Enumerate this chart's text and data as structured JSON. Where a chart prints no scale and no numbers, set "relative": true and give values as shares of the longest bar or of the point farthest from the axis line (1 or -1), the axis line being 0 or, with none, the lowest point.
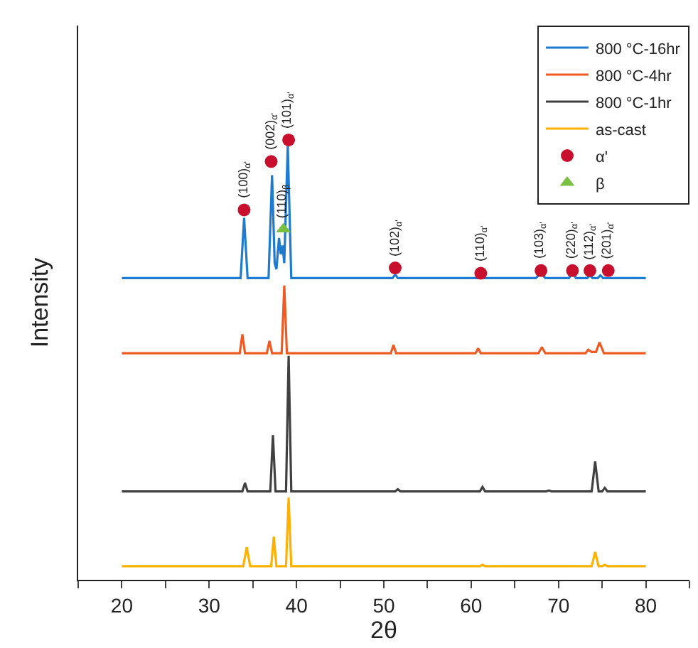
{
  "chart_data": {
    "type": "line",
    "xlabel": "2θ",
    "ylabel": "Intensity",
    "relative": true,
    "xlim": [
      15,
      85
    ],
    "xticks": [
      {
        "value": 15,
        "label": null
      },
      20,
      {
        "value": 25,
        "label": null
      },
      30,
      {
        "value": 35,
        "label": null
      },
      40,
      {
        "value": 45,
        "label": null
      },
      50,
      {
        "value": 55,
        "label": null
      },
      60,
      {
        "value": 65,
        "label": null
      },
      70,
      {
        "value": 75,
        "label": null
      },
      80,
      {
        "value": 85,
        "label": null
      }
    ],
    "legend": "top right",
    "series": [
      {
        "name": "800 °C-16hr",
        "color": "#1f7bcf",
        "marker": "none",
        "x": [
          20,
          33.6,
          34.0,
          34.4,
          36.8,
          37.2,
          37.5,
          37.7,
          38.0,
          38.2,
          38.4,
          38.6,
          39.0,
          39.4,
          51.0,
          51.3,
          51.6,
          60.8,
          61.1,
          61.4,
          67.4,
          68.0,
          68.5,
          71.2,
          71.6,
          72.0,
          73.3,
          73.6,
          73.9,
          74.5,
          74.8,
          75.1,
          80
        ],
        "values": [
          0.686,
          0.686,
          0.823,
          0.686,
          0.686,
          0.92,
          0.72,
          0.706,
          0.777,
          0.74,
          0.76,
          0.72,
          0.986,
          0.686,
          0.686,
          0.694,
          0.686,
          0.686,
          0.691,
          0.686,
          0.686,
          0.697,
          0.686,
          0.686,
          0.7,
          0.686,
          0.686,
          0.692,
          0.686,
          0.686,
          0.692,
          0.686,
          0.686
        ]
      },
      {
        "name": "800 °C-4hr",
        "color": "#f05a22",
        "marker": "none",
        "x": [
          20,
          33.5,
          33.8,
          34.1,
          36.6,
          36.9,
          37.2,
          38.3,
          38.6,
          38.9,
          50.8,
          51.1,
          51.4,
          60.5,
          60.8,
          61.1,
          67.7,
          68.1,
          68.5,
          73.1,
          73.4,
          73.8,
          74.3,
          74.7,
          75.2,
          80
        ],
        "values": [
          0.515,
          0.515,
          0.558,
          0.515,
          0.515,
          0.543,
          0.515,
          0.515,
          0.669,
          0.515,
          0.515,
          0.534,
          0.515,
          0.515,
          0.526,
          0.515,
          0.515,
          0.529,
          0.515,
          0.515,
          0.523,
          0.518,
          0.518,
          0.54,
          0.515,
          0.515
        ]
      },
      {
        "name": "800 °C-1hr",
        "color": "#404040",
        "marker": "none",
        "x": [
          20,
          33.8,
          34.1,
          34.4,
          37.0,
          37.3,
          37.6,
          38.8,
          39.1,
          39.4,
          51.3,
          51.6,
          51.9,
          61.0,
          61.3,
          61.6,
          68.6,
          68.9,
          69.2,
          73.8,
          74.2,
          74.6,
          75.0,
          75.3,
          75.6,
          80
        ],
        "values": [
          0.201,
          0.201,
          0.22,
          0.201,
          0.201,
          0.329,
          0.201,
          0.201,
          0.509,
          0.201,
          0.201,
          0.206,
          0.201,
          0.201,
          0.211,
          0.201,
          0.201,
          0.203,
          0.201,
          0.201,
          0.269,
          0.201,
          0.201,
          0.209,
          0.201,
          0.201
        ]
      },
      {
        "name": "as-cast",
        "color": "#ffb000",
        "marker": "none",
        "x": [
          20,
          33.9,
          34.3,
          34.7,
          37.1,
          37.4,
          37.7,
          38.8,
          39.1,
          39.4,
          61.0,
          61.3,
          61.6,
          73.8,
          74.2,
          74.6,
          75.0,
          75.3,
          75.6,
          80
        ],
        "values": [
          0.031,
          0.031,
          0.074,
          0.031,
          0.031,
          0.098,
          0.031,
          0.031,
          0.187,
          0.031,
          0.031,
          0.034,
          0.031,
          0.031,
          0.063,
          0.031,
          0.031,
          0.034,
          0.031,
          0.031
        ]
      },
      {
        "name": "α'",
        "type": "scatter",
        "color": "#c8102e",
        "marker": "circle",
        "x": [
          34.0,
          37.1,
          39.1,
          51.3,
          61.1,
          68.0,
          71.6,
          73.6,
          75.7
        ],
        "values": [
          0.841,
          0.951,
          1.0,
          0.709,
          0.697,
          0.703,
          0.703,
          0.703,
          0.703
        ]
      },
      {
        "name": "β",
        "type": "scatter",
        "color": "#7ac143",
        "marker": "triangle",
        "x": [
          38.5
        ],
        "values": [
          0.797
        ]
      }
    ],
    "annotations": [
      {
        "text": "(100)$_{α'}$",
        "x": 34.0,
        "y": 0.841
      },
      {
        "text": "(002)$_{α'}$",
        "x": 37.1,
        "y": 0.951
      },
      {
        "text": "(101)$_{α'}$",
        "x": 39.1,
        "y": 1.0
      },
      {
        "text": "(110)$_{β}$",
        "x": 38.5,
        "y": 0.797
      },
      {
        "text": "(102)$_{α'}$",
        "x": 51.3,
        "y": 0.709
      },
      {
        "text": "(110)$_{α'}$",
        "x": 61.1,
        "y": 0.697
      },
      {
        "text": "(103)$_{α'}$",
        "x": 68.0,
        "y": 0.703
      },
      {
        "text": "(220)$_{α'}$",
        "x": 71.6,
        "y": 0.703
      },
      {
        "text": "(112)$_{α'}$",
        "x": 73.6,
        "y": 0.703
      },
      {
        "text": "(201)$_{α'}$",
        "x": 75.7,
        "y": 0.703
      }
    ]
  }
}
